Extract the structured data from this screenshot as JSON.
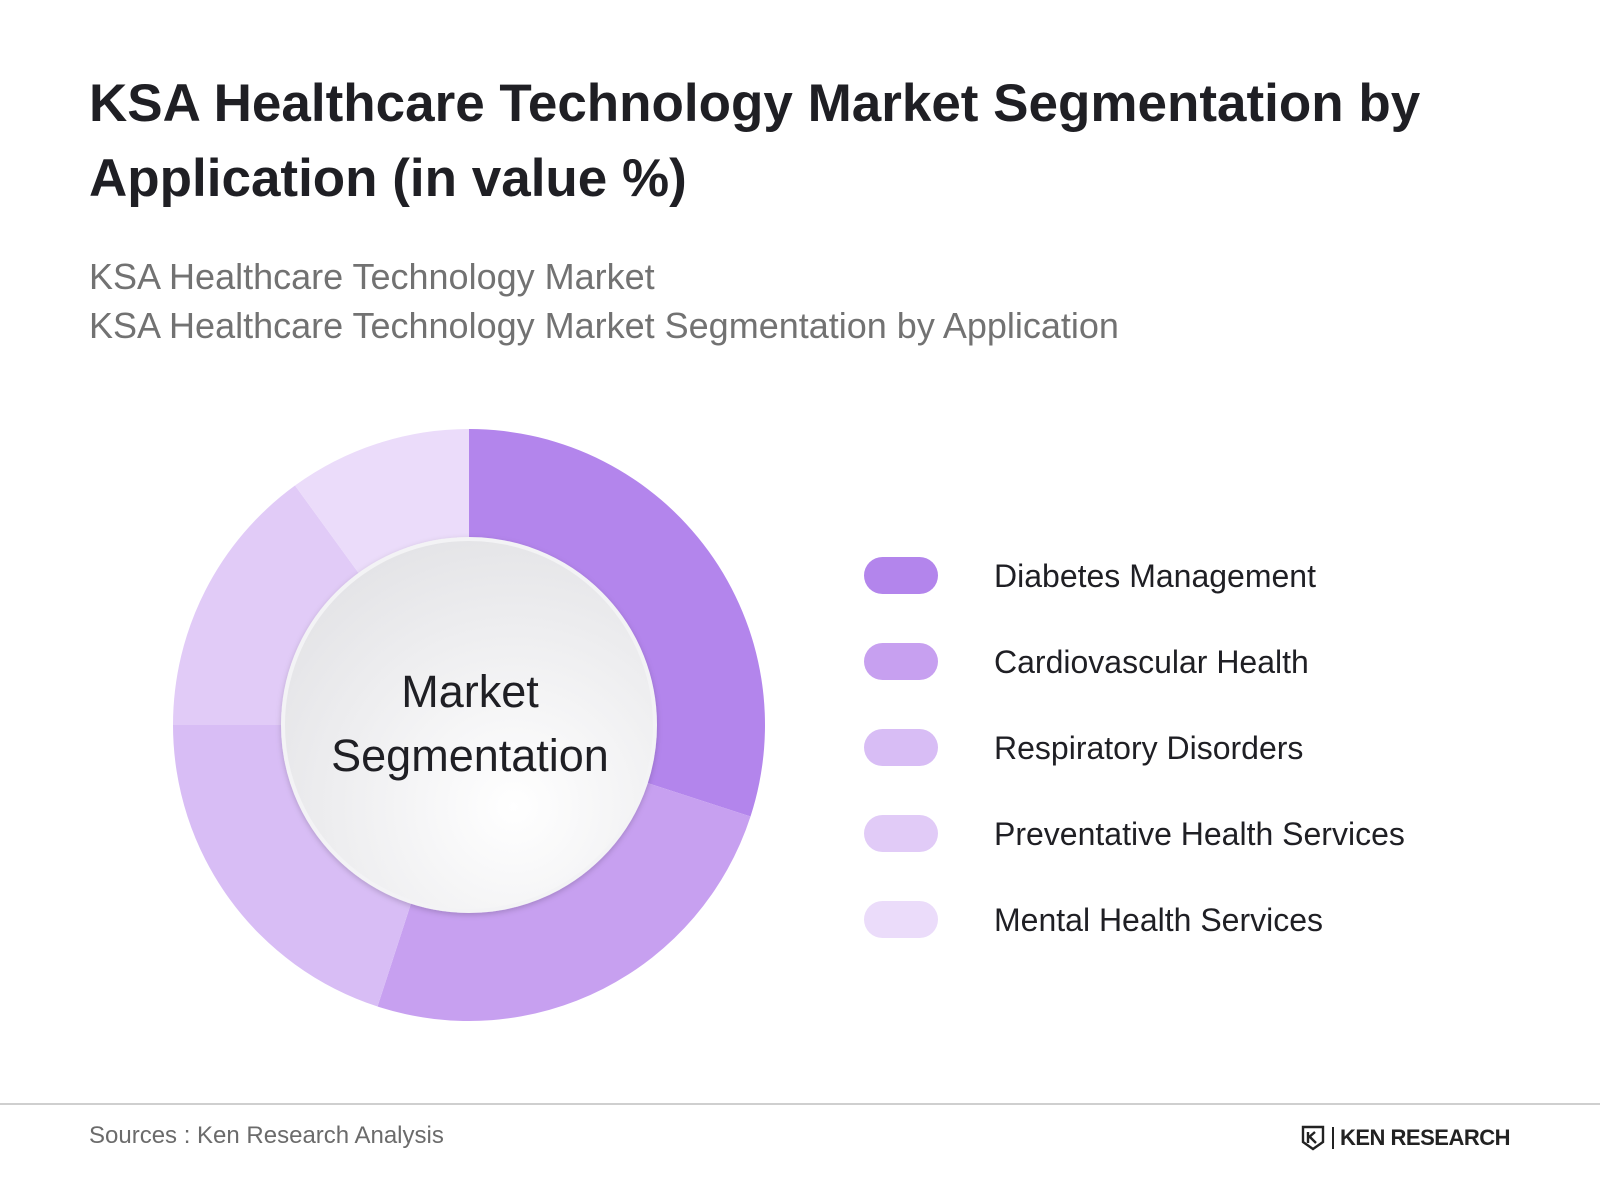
{
  "header": {
    "title": "KSA Healthcare Technology Market Segmentation by Application (in value %)",
    "subtitle_line1": "KSA Healthcare Technology Market",
    "subtitle_line2": "KSA Healthcare Technology Market Segmentation by Application"
  },
  "chart_data": {
    "type": "pie",
    "style": "donut",
    "center_label_line1": "Market",
    "center_label_line2": "Segmentation",
    "categories": [
      "Diabetes Management",
      "Cardiovascular Health",
      "Respiratory Disorders",
      "Preventative Health Services",
      "Mental Health Services"
    ],
    "values": [
      30,
      25,
      20,
      15,
      10
    ],
    "colors": [
      "#b385ec",
      "#c7a0f0",
      "#d8bdf5",
      "#e1cbf7",
      "#ebdcfa"
    ],
    "legend_position": "right"
  },
  "footer": {
    "source": "Sources : Ken Research Analysis",
    "brand": "KEN RESEARCH"
  }
}
